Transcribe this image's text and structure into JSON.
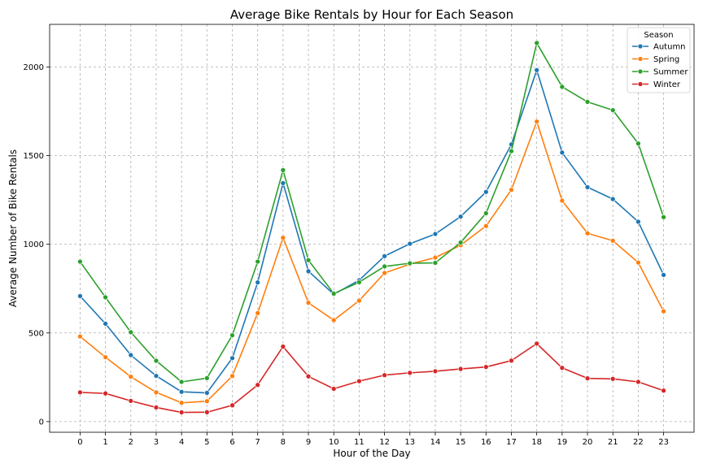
{
  "chart_data": {
    "type": "line",
    "title": "Average Bike Rentals by Hour for Each Season",
    "xlabel": "Hour of the Day",
    "ylabel": "Average Number of Bike Rentals",
    "x": [
      0,
      1,
      2,
      3,
      4,
      5,
      6,
      7,
      8,
      9,
      10,
      11,
      12,
      13,
      14,
      15,
      16,
      17,
      18,
      19,
      20,
      21,
      22,
      23
    ],
    "x_tick_labels": [
      "0",
      "1",
      "2",
      "3",
      "4",
      "5",
      "6",
      "7",
      "8",
      "9",
      "10",
      "11",
      "12",
      "13",
      "14",
      "15",
      "16",
      "17",
      "18",
      "19",
      "20",
      "21",
      "22",
      "23"
    ],
    "xlim": [
      -1.2,
      24.2
    ],
    "ylim": [
      -60,
      2240
    ],
    "y_ticks": [
      0,
      500,
      1000,
      1500,
      2000
    ],
    "y_tick_labels": [
      "0",
      "500",
      "1000",
      "1500",
      "2000"
    ],
    "grid": true,
    "legend": {
      "title": "Season",
      "placement": "top-right"
    },
    "series": [
      {
        "name": "Autumn",
        "color": "#1f77b4",
        "values": [
          708,
          552,
          375,
          258,
          168,
          162,
          358,
          785,
          1345,
          848,
          718,
          797,
          933,
          1003,
          1058,
          1156,
          1295,
          1563,
          1982,
          1517,
          1322,
          1255,
          1127,
          827
        ]
      },
      {
        "name": "Spring",
        "color": "#ff7f0e",
        "values": [
          480,
          363,
          253,
          165,
          106,
          115,
          257,
          612,
          1037,
          670,
          572,
          682,
          838,
          888,
          925,
          995,
          1103,
          1307,
          1692,
          1246,
          1062,
          1020,
          897,
          622
        ]
      },
      {
        "name": "Summer",
        "color": "#2ca02c",
        "values": [
          902,
          701,
          504,
          343,
          224,
          245,
          487,
          902,
          1418,
          910,
          722,
          786,
          875,
          893,
          895,
          1010,
          1175,
          1525,
          2135,
          1888,
          1803,
          1756,
          1568,
          1153
        ]
      },
      {
        "name": "Winter",
        "color": "#d62728",
        "values": [
          165,
          159,
          117,
          80,
          52,
          53,
          92,
          207,
          423,
          255,
          185,
          228,
          262,
          275,
          284,
          297,
          308,
          344,
          440,
          303,
          244,
          241,
          224,
          175
        ]
      }
    ]
  }
}
